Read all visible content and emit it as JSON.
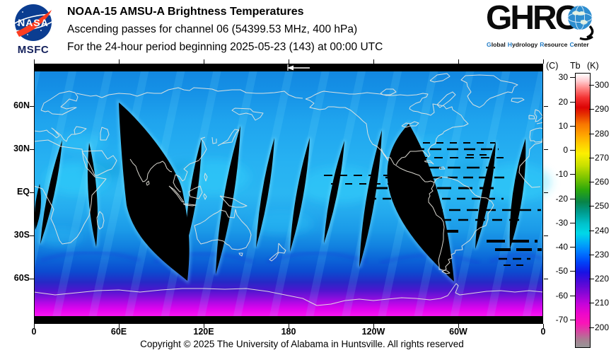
{
  "header": {
    "title": "NOAA-15 AMSU-A Brightness Temperatures",
    "line2": "Ascending passes for channel 06 (54399.53 MHz, 400 hPa)",
    "line3": "For the 24-hour period beginning 2025-05-23 (143) at 00:00 UTC"
  },
  "nasa": {
    "wordmark": "NASA",
    "center": "MSFC"
  },
  "ghrc": {
    "acronym": "GHR",
    "tagline": [
      {
        "i": "G",
        "rest": "lobal"
      },
      {
        "i": "H",
        "rest": "ydrology"
      },
      {
        "i": "R",
        "rest": "esource"
      },
      {
        "i": "C",
        "rest": "enter"
      }
    ]
  },
  "map": {
    "lat_labels": [
      "60N",
      "30N",
      "EQ",
      "30S",
      "60S"
    ],
    "lon_labels": [
      "0",
      "60E",
      "120E",
      "180",
      "120W",
      "60W",
      "0"
    ]
  },
  "colorbar": {
    "unit_c": "(C)",
    "unit_tb": "Tb",
    "unit_k": "(K)",
    "c_values": [
      "30",
      "20",
      "10",
      "0",
      "-10",
      "-20",
      "-30",
      "-40",
      "-50",
      "-60",
      "-70"
    ],
    "k_values": [
      "300",
      "290",
      "280",
      "270",
      "260",
      "250",
      "240",
      "230",
      "220",
      "210",
      "200"
    ]
  },
  "footer": {
    "copyright": "Copyright © 2025 The University of Alabama in Huntsville.  All rights reserved"
  },
  "colors": {
    "nasa_blue": "#0b3d91",
    "nasa_red": "#fc3d21",
    "ghrc_initial_blue": "#1f7ac4",
    "ocean_blue": "#1b9ce8",
    "equator_cyan": "#2ab6f2",
    "antarctic_magenta": "#ee06ee",
    "no_data_black": "#000000",
    "coastline_white": "#e9e7df"
  },
  "chart_data": {
    "type": "heatmap",
    "title": "NOAA-15 AMSU-A Brightness Temperatures",
    "subtitle": "Ascending passes for channel 06 (54399.53 MHz, 400 hPa)",
    "period": "For the 24-hour period beginning 2025-05-23 (143) at 00:00 UTC",
    "projection": "equirectangular world map, longitude 0 to 360E left-to-right (prime meridian at both edges), latitude 90N top to 90S bottom",
    "x_axis": {
      "tick_labels": [
        "0",
        "60E",
        "120E",
        "180",
        "120W",
        "60W",
        "0"
      ],
      "grid": false
    },
    "y_axis": {
      "tick_labels": [
        "60N",
        "30N",
        "EQ",
        "30S",
        "60S"
      ],
      "grid": false
    },
    "colorbar": {
      "label_left": "(C)",
      "label_center": "Tb",
      "label_right": "(K)",
      "celsius_ticks": [
        30,
        20,
        10,
        0,
        -10,
        -20,
        -30,
        -40,
        -50,
        -60,
        -70
      ],
      "kelvin_ticks": [
        300,
        290,
        280,
        270,
        260,
        250,
        240,
        230,
        220,
        210,
        200
      ],
      "approx_domain_kelvin": [
        192,
        305
      ],
      "gradient_top_to_bottom": [
        "white",
        "pink",
        "red",
        "orange",
        "yellow",
        "yellow-green",
        "green",
        "dark green",
        "teal",
        "cyan",
        "light blue",
        "blue",
        "deep blue",
        "violet",
        "purple",
        "magenta",
        "hot pink",
        "gray"
      ],
      "legend_position": "right"
    },
    "features": {
      "swaths": "about 12 ascending orbital swaths separated by black lens-shaped no-data gaps tilted roughly N-S",
      "typical_values_kelvin": {
        "tropics_and_midlatitudes": "232-242 (blue to cyan)",
        "southern_ocean": "220-230 (deep blue)",
        "antarctica": "198-212 (violet to bright magenta)"
      },
      "no_data_regions": "black caps at top and bottom map edges; one wide gap with black dashed missing scan lines near 60W over South America; small white left-pointing arrow marker at top near 180",
      "coastlines": "thin white-gray continental outlines drawn over the data"
    }
  }
}
